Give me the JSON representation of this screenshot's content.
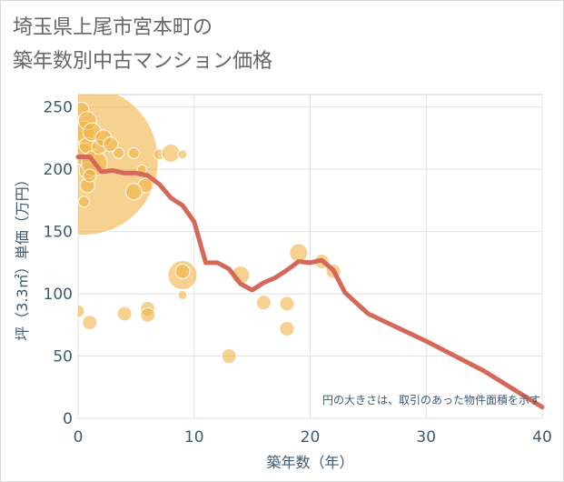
{
  "title_lines": [
    "埼玉県上尾市宮本町の",
    "築年数別中古マンション価格"
  ],
  "chart_data": {
    "type": "scatter",
    "title": "埼玉県上尾市宮本町の築年数別中古マンション価格",
    "xlabel": "築年数（年）",
    "ylabel": "坪（3.3㎡）単価（万円）",
    "xlim": [
      0,
      40
    ],
    "ylim": [
      0,
      260
    ],
    "xticks": [
      0,
      10,
      20,
      30,
      40
    ],
    "yticks": [
      0,
      50,
      100,
      150,
      200,
      250
    ],
    "grid": true,
    "annotation": "円の大きさは、取引のあった物件面積を示す",
    "colors": {
      "bubble": "#f0b245",
      "line": "#d4695a",
      "axis_text": "#3d5a73",
      "grid": "#dde3ea"
    },
    "bubble_series": [
      {
        "x": 0.5,
        "y": 207,
        "size": 82
      },
      {
        "x": 0.3,
        "y": 248,
        "size": 8
      },
      {
        "x": 0.5,
        "y": 230,
        "size": 12
      },
      {
        "x": 0.5,
        "y": 212,
        "size": 12
      },
      {
        "x": 0.8,
        "y": 239,
        "size": 10
      },
      {
        "x": 0.8,
        "y": 219,
        "size": 9
      },
      {
        "x": 0.8,
        "y": 199,
        "size": 9
      },
      {
        "x": 0.8,
        "y": 187,
        "size": 8
      },
      {
        "x": 1.2,
        "y": 230,
        "size": 10
      },
      {
        "x": 1.4,
        "y": 205,
        "size": 14
      },
      {
        "x": 1.8,
        "y": 218,
        "size": 8
      },
      {
        "x": 2.2,
        "y": 225,
        "size": 9
      },
      {
        "x": 2.8,
        "y": 220,
        "size": 8
      },
      {
        "x": 0.5,
        "y": 174,
        "size": 6
      },
      {
        "x": 1,
        "y": 195,
        "size": 7
      },
      {
        "x": 3.5,
        "y": 213,
        "size": 6
      },
      {
        "x": 4.8,
        "y": 213,
        "size": 6
      },
      {
        "x": 5.5,
        "y": 200,
        "size": 5
      },
      {
        "x": 5.8,
        "y": 187,
        "size": 8
      },
      {
        "x": 4.8,
        "y": 182,
        "size": 9
      },
      {
        "x": 7,
        "y": 212,
        "size": 6
      },
      {
        "x": 8,
        "y": 213,
        "size": 10
      },
      {
        "x": 9,
        "y": 212,
        "size": 5
      },
      {
        "x": 9,
        "y": 115,
        "size": 16
      },
      {
        "x": 9,
        "y": 118,
        "size": 8
      },
      {
        "x": 9,
        "y": 99,
        "size": 5
      },
      {
        "x": 14,
        "y": 115,
        "size": 10
      },
      {
        "x": 16,
        "y": 93,
        "size": 8
      },
      {
        "x": 18,
        "y": 92,
        "size": 8
      },
      {
        "x": 18,
        "y": 72,
        "size": 8
      },
      {
        "x": 19,
        "y": 133,
        "size": 10
      },
      {
        "x": 21,
        "y": 126,
        "size": 8
      },
      {
        "x": 22,
        "y": 118,
        "size": 8
      },
      {
        "x": 0,
        "y": 86,
        "size": 7
      },
      {
        "x": 1,
        "y": 77,
        "size": 8
      },
      {
        "x": 4,
        "y": 84,
        "size": 8
      },
      {
        "x": 6,
        "y": 88,
        "size": 8
      },
      {
        "x": 6,
        "y": 83,
        "size": 8
      },
      {
        "x": 13,
        "y": 50,
        "size": 8
      }
    ],
    "line_series": {
      "x": [
        0,
        1,
        2,
        3,
        4,
        5,
        6,
        7,
        8,
        9,
        10,
        11,
        12,
        13,
        14,
        15,
        16,
        17,
        18,
        19,
        20,
        21,
        22,
        23,
        25,
        30,
        35,
        40
      ],
      "y": [
        210,
        210,
        198,
        199,
        197,
        197,
        195,
        188,
        177,
        171,
        158,
        125,
        125,
        120,
        108,
        103,
        109,
        113,
        119,
        126,
        125,
        127,
        119,
        101,
        84,
        62,
        38,
        9
      ]
    }
  }
}
